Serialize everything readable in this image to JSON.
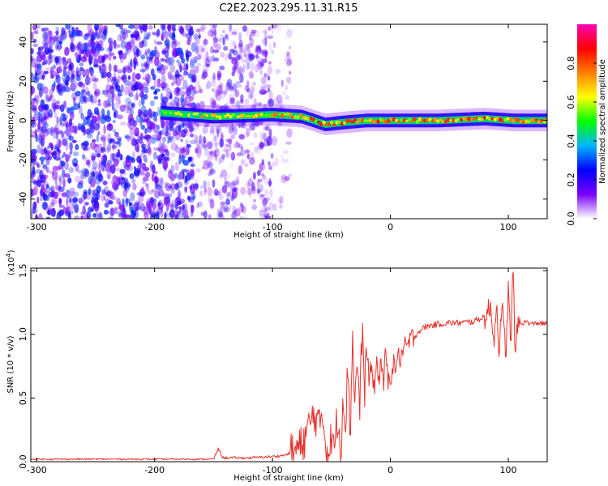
{
  "figure_title": "C2E2.2023.295.11.31.R15",
  "colors": {
    "line_series": "#e8322c",
    "background": "#ffffff",
    "axis": "#000000"
  },
  "chart_data": [
    {
      "type": "heatmap",
      "xlabel": "Height of straight line (km)",
      "ylabel": "Frequency (Hz)",
      "xlim": [
        -305,
        133
      ],
      "ylim": [
        -50,
        49
      ],
      "xticks": [
        -300,
        -200,
        -100,
        0,
        100
      ],
      "xtick_labels": [
        "-300",
        "-200",
        "-100",
        "0",
        "100"
      ],
      "yticks": [
        -40,
        -20,
        0,
        20,
        40
      ],
      "ytick_labels": [
        "-40",
        "-20",
        "0",
        "20",
        "40"
      ],
      "colorbar": {
        "label": "Normalized spectral amplitude",
        "range": [
          0,
          1
        ],
        "ticks": [
          0.0,
          0.2,
          0.4,
          0.6,
          0.8
        ],
        "tick_labels": [
          "0.0",
          "0.2",
          "0.4",
          "0.6",
          "0.8"
        ],
        "colormap": [
          "#ffffff",
          "#7a00ff",
          "#0000ff",
          "#00b4ff",
          "#00ff00",
          "#ffff00",
          "#ff8000",
          "#ff0000",
          "#ff00b4"
        ]
      },
      "regions": [
        {
          "x": [
            -305,
            -165
          ],
          "y": [
            -50,
            49
          ],
          "level": 0.2,
          "texture": "noise-dense"
        },
        {
          "x": [
            -165,
            -100
          ],
          "y": [
            -50,
            49
          ],
          "level": 0.15,
          "texture": "noise-sparse"
        },
        {
          "x": [
            -100,
            -85
          ],
          "y": [
            -50,
            49
          ],
          "level": 0.08,
          "texture": "noise-faint"
        }
      ],
      "ridge": [
        {
          "x": -195,
          "y": 4
        },
        {
          "x": -150,
          "y": 2
        },
        {
          "x": -100,
          "y": 3
        },
        {
          "x": -75,
          "y": 2
        },
        {
          "x": -55,
          "y": -2
        },
        {
          "x": -40,
          "y": -1
        },
        {
          "x": -20,
          "y": 0
        },
        {
          "x": 0,
          "y": 0
        },
        {
          "x": 40,
          "y": 0
        },
        {
          "x": 80,
          "y": 1
        },
        {
          "x": 105,
          "y": 0
        },
        {
          "x": 133,
          "y": 0
        }
      ]
    },
    {
      "type": "line",
      "xlabel": "Height of straight line (km)",
      "ylabel": "SNR (10 * v/v)",
      "y_multiplier": "(x10",
      "y_multiplier_exp": "4",
      "y_multiplier_close": ")",
      "xlim": [
        -305,
        133
      ],
      "ylim": [
        0,
        1.52
      ],
      "xticks": [
        -300,
        -200,
        -100,
        0,
        100
      ],
      "xtick_labels": [
        "-300",
        "-200",
        "-100",
        "0",
        "100"
      ],
      "yticks": [
        0.0,
        0.5,
        1.0,
        1.5
      ],
      "ytick_labels": [
        "0.0",
        "0.5",
        "1.0",
        "1.5"
      ],
      "series": [
        {
          "x": [
            -305,
            -200,
            -150,
            -146,
            -142,
            -120,
            -100,
            -90,
            -82,
            -76,
            -72,
            -68,
            -64,
            -60,
            -58,
            -55,
            -52,
            -50,
            -48,
            -45,
            -42,
            -40,
            -38,
            -36,
            -34,
            -32,
            -30,
            -28,
            -26,
            -24,
            -22,
            -20,
            -18,
            -16,
            -14,
            -12,
            -10,
            -8,
            -6,
            -4,
            -2,
            0,
            5,
            10,
            15,
            20,
            25,
            30,
            40,
            50,
            60,
            70,
            75,
            80,
            85,
            88,
            90,
            92,
            95,
            98,
            100,
            102,
            104,
            106,
            108,
            110,
            115,
            120,
            125,
            133
          ],
          "y": [
            0.02,
            0.02,
            0.02,
            0.1,
            0.03,
            0.03,
            0.04,
            0.05,
            0.08,
            0.12,
            0.2,
            0.3,
            0.38,
            0.25,
            0.42,
            0.15,
            0.05,
            0.2,
            0.08,
            0.35,
            0.12,
            0.55,
            0.3,
            0.8,
            0.22,
            1.0,
            0.45,
            0.82,
            0.38,
            1.05,
            0.55,
            0.9,
            0.62,
            0.75,
            0.55,
            0.8,
            0.62,
            0.82,
            0.58,
            0.85,
            0.62,
            0.7,
            0.78,
            0.85,
            0.92,
            0.98,
            1.03,
            1.06,
            1.08,
            1.09,
            1.09,
            1.1,
            1.12,
            1.14,
            1.2,
            0.98,
            1.25,
            0.9,
            1.18,
            0.85,
            1.35,
            0.9,
            1.52,
            0.8,
            1.1,
            1.08,
            1.1,
            1.08,
            1.09,
            1.08
          ]
        }
      ]
    }
  ]
}
